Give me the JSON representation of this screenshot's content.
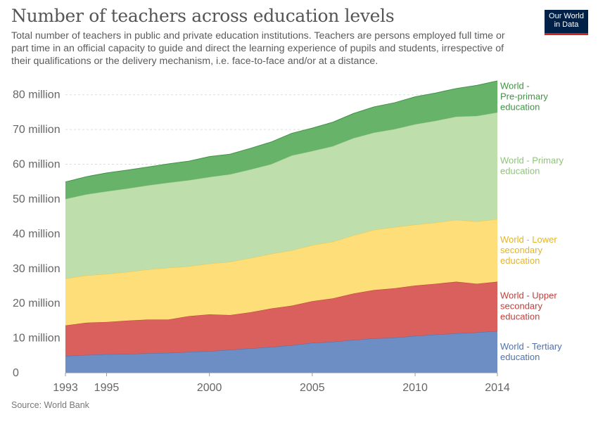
{
  "header": {
    "title": "Number of teachers across education levels",
    "subtitle": "Total number of teachers in public and private education institutions. Teachers are persons employed full time or part time in an official capacity to guide and direct the learning experience of pupils and students, irrespective of their qualifications or the delivery mechanism, i.e. face-to-face and/or at a distance.",
    "logo_line1": "Our World",
    "logo_line2": "in Data"
  },
  "footer": {
    "source": "Source: World Bank"
  },
  "colors": {
    "tertiary": "#6d8ec4",
    "upper_secondary": "#d9605d",
    "lower_secondary": "#fede78",
    "primary": "#bedeac",
    "pre_primary": "#67b36a",
    "grid": "#dddddd"
  },
  "chart_data": {
    "type": "area",
    "stacked": true,
    "x": [
      1993,
      1994,
      1995,
      1996,
      1997,
      1998,
      1999,
      2000,
      2001,
      2002,
      2003,
      2004,
      2005,
      2006,
      2007,
      2008,
      2009,
      2010,
      2011,
      2012,
      2013,
      2014
    ],
    "xticks": [
      "1993",
      "1995",
      "2000",
      "2005",
      "2010",
      "2014"
    ],
    "yticks": [
      "0",
      "10 million",
      "20 million",
      "30 million",
      "40 million",
      "50 million",
      "60 million",
      "70 million",
      "80 million"
    ],
    "ylim": [
      0,
      85000000
    ],
    "xlim": [
      1993,
      2014
    ],
    "grid": true,
    "legend": "right-inline",
    "series": [
      {
        "key": "tertiary",
        "label_lines": [
          "World - Tertiary",
          "education"
        ],
        "values": [
          4.8,
          5.1,
          5.3,
          5.4,
          5.6,
          5.7,
          6.0,
          6.2,
          6.6,
          7.0,
          7.4,
          7.9,
          8.6,
          8.9,
          9.4,
          9.9,
          10.1,
          10.6,
          11.0,
          11.3,
          11.6,
          12.0
        ]
      },
      {
        "key": "upper_secondary",
        "label_lines": [
          "World - Upper",
          "secondary",
          "education"
        ],
        "values": [
          8.8,
          9.3,
          9.3,
          9.6,
          9.7,
          9.6,
          10.3,
          10.6,
          10.0,
          10.4,
          11.1,
          11.4,
          12.0,
          12.5,
          13.4,
          13.9,
          14.2,
          14.5,
          14.6,
          14.9,
          14.0,
          14.2
        ]
      },
      {
        "key": "lower_secondary",
        "label_lines": [
          "World - Lower",
          "secondary",
          "education"
        ],
        "values": [
          13.5,
          13.6,
          13.8,
          14.0,
          14.4,
          14.9,
          14.3,
          14.6,
          15.3,
          15.6,
          15.7,
          15.9,
          16.1,
          16.3,
          16.7,
          17.3,
          17.6,
          17.5,
          17.6,
          17.8,
          17.9,
          18.0
        ]
      },
      {
        "key": "primary",
        "label_lines": [
          "World - Primary",
          "education"
        ],
        "values": [
          22.9,
          23.3,
          23.8,
          24.0,
          24.2,
          24.5,
          24.8,
          24.9,
          25.2,
          25.5,
          25.8,
          27.3,
          27.1,
          27.5,
          28.0,
          28.0,
          28.2,
          28.9,
          29.3,
          29.7,
          30.4,
          30.7
        ]
      },
      {
        "key": "pre_primary",
        "label_lines": [
          "World - ",
          "Pre-primary",
          "education"
        ],
        "values": [
          4.9,
          5.1,
          5.3,
          5.3,
          5.3,
          5.4,
          5.5,
          5.9,
          5.8,
          6.1,
          6.4,
          6.4,
          6.6,
          6.9,
          7.1,
          7.4,
          7.6,
          7.9,
          8.0,
          8.1,
          8.8,
          9.1
        ]
      }
    ],
    "value_unit": "million"
  }
}
